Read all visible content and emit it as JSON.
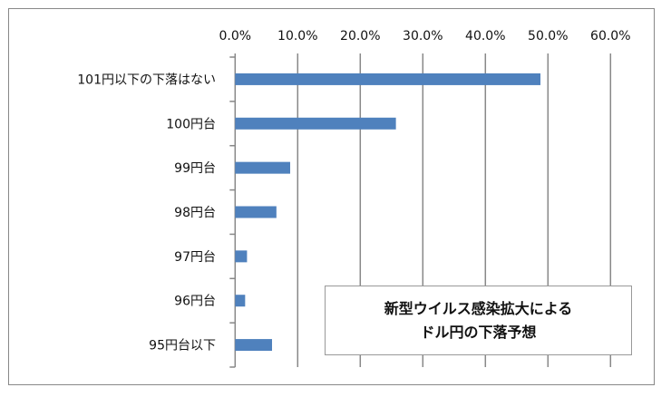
{
  "chart_data": {
    "type": "bar",
    "orientation": "horizontal",
    "categories": [
      "101円以下の下落はない",
      "100円台",
      "99円台",
      "98円台",
      "97円台",
      "96円台",
      "95円台以下"
    ],
    "values": [
      48.8,
      25.7,
      8.8,
      6.6,
      1.9,
      1.6,
      5.9
    ],
    "tick_labels": [
      "0.0%",
      "10.0%",
      "20.0%",
      "30.0%",
      "40.0%",
      "50.0%",
      "60.0%"
    ],
    "xlim": [
      0,
      60
    ],
    "x_axis_position": "top",
    "grid": true,
    "bar_color": "#4F81BD",
    "title_box": [
      "新型ウイルス感染拡大による",
      "ドル円の下落予想"
    ],
    "title": "",
    "xlabel": "",
    "ylabel": ""
  }
}
